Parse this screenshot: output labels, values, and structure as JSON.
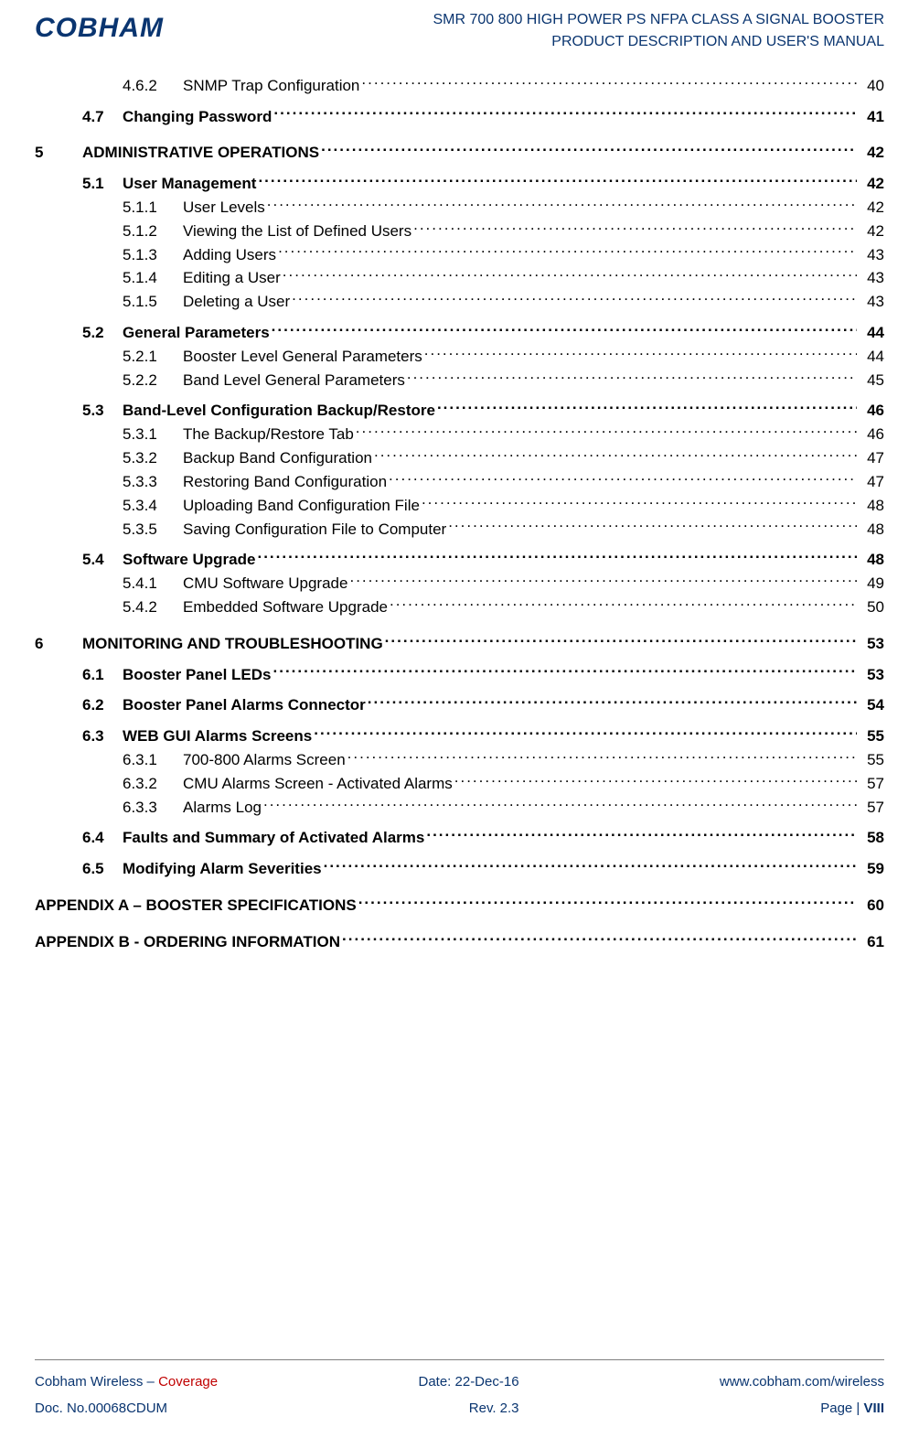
{
  "header": {
    "logo_text": "COBHAM",
    "title_line1": "SMR 700 800 HIGH POWER PS NFPA CLASS A SIGNAL BOOSTER",
    "title_line2": "PRODUCT DESCRIPTION AND USER'S MANUAL"
  },
  "colors": {
    "brand": "#0a3570",
    "accent": "#c00000"
  },
  "toc": [
    {
      "level": 3,
      "num": "4.6.2",
      "title": "SNMP Trap Configuration ",
      "page": "40"
    },
    {
      "level": 2,
      "num": "4.7",
      "title": "Changing Password ",
      "page": "41"
    },
    {
      "level": 1,
      "num": "5",
      "title": "ADMINISTRATIVE OPERATIONS ",
      "page": "42"
    },
    {
      "level": 2,
      "num": "5.1",
      "title": "User Management ",
      "page": "42"
    },
    {
      "level": 3,
      "num": "5.1.1",
      "title": "User Levels ",
      "page": "42"
    },
    {
      "level": 3,
      "num": "5.1.2",
      "title": "Viewing the List of Defined Users",
      "page": "42"
    },
    {
      "level": 3,
      "num": "5.1.3",
      "title": "Adding Users ",
      "page": "43"
    },
    {
      "level": 3,
      "num": "5.1.4",
      "title": "Editing a User",
      "page": "43"
    },
    {
      "level": 3,
      "num": "5.1.5",
      "title": "Deleting a User",
      "page": "43"
    },
    {
      "level": 2,
      "num": "5.2",
      "title": "General Parameters ",
      "page": "44"
    },
    {
      "level": 3,
      "num": "5.2.1",
      "title": "Booster Level General Parameters ",
      "page": "44"
    },
    {
      "level": 3,
      "num": "5.2.2",
      "title": "Band Level General Parameters ",
      "page": "45"
    },
    {
      "level": 2,
      "num": "5.3",
      "title": "Band-Level Configuration Backup/Restore ",
      "page": "46"
    },
    {
      "level": 3,
      "num": "5.3.1",
      "title": "The Backup/Restore Tab ",
      "page": "46"
    },
    {
      "level": 3,
      "num": "5.3.2",
      "title": "Backup Band Configuration ",
      "page": "47"
    },
    {
      "level": 3,
      "num": "5.3.3",
      "title": "Restoring Band Configuration ",
      "page": "47"
    },
    {
      "level": 3,
      "num": "5.3.4",
      "title": "Uploading Band Configuration File ",
      "page": "48"
    },
    {
      "level": 3,
      "num": "5.3.5",
      "title": "Saving Configuration File to Computer ",
      "page": "48"
    },
    {
      "level": 2,
      "num": "5.4",
      "title": "Software Upgrade ",
      "page": "48"
    },
    {
      "level": 3,
      "num": "5.4.1",
      "title": "CMU Software Upgrade ",
      "page": "49"
    },
    {
      "level": 3,
      "num": "5.4.2",
      "title": "Embedded Software Upgrade",
      "page": "50"
    },
    {
      "level": 1,
      "num": "6",
      "title": "MONITORING AND TROUBLESHOOTING ",
      "page": "53"
    },
    {
      "level": 2,
      "num": "6.1",
      "title": "Booster Panel LEDs ",
      "page": "53"
    },
    {
      "level": 2,
      "num": "6.2",
      "title": "Booster Panel Alarms Connector ",
      "page": "54"
    },
    {
      "level": 2,
      "num": "6.3",
      "title": "WEB GUI Alarms Screens ",
      "page": "55"
    },
    {
      "level": 3,
      "num": "6.3.1",
      "title": "700-800 Alarms Screen ",
      "page": "55"
    },
    {
      "level": 3,
      "num": "6.3.2",
      "title": "CMU Alarms Screen - Activated Alarms ",
      "page": "57"
    },
    {
      "level": 3,
      "num": "6.3.3",
      "title": "Alarms Log ",
      "page": "57"
    },
    {
      "level": 2,
      "num": "6.4",
      "title": "Faults and Summary of Activated Alarms ",
      "page": "58"
    },
    {
      "level": 2,
      "num": "6.5",
      "title": "Modifying Alarm Severities ",
      "page": "59"
    },
    {
      "level": "app",
      "num": "",
      "title": "APPENDIX A – BOOSTER SPECIFICATIONS",
      "page": "60"
    },
    {
      "level": "app",
      "num": "",
      "title": "APPENDIX B - ORDERING INFORMATION ",
      "page": "61"
    }
  ],
  "footer": {
    "left1a": "Cobham Wireless ",
    "left1b": "– ",
    "left1c": "Coverage",
    "mid1": "Date: 22-Dec-16",
    "right1": "www.cobham.com/wireless",
    "left2": "Doc. No.00068CDUM",
    "mid2": "Rev. 2.3",
    "right2a": "Page | ",
    "right2b": "VIII"
  }
}
